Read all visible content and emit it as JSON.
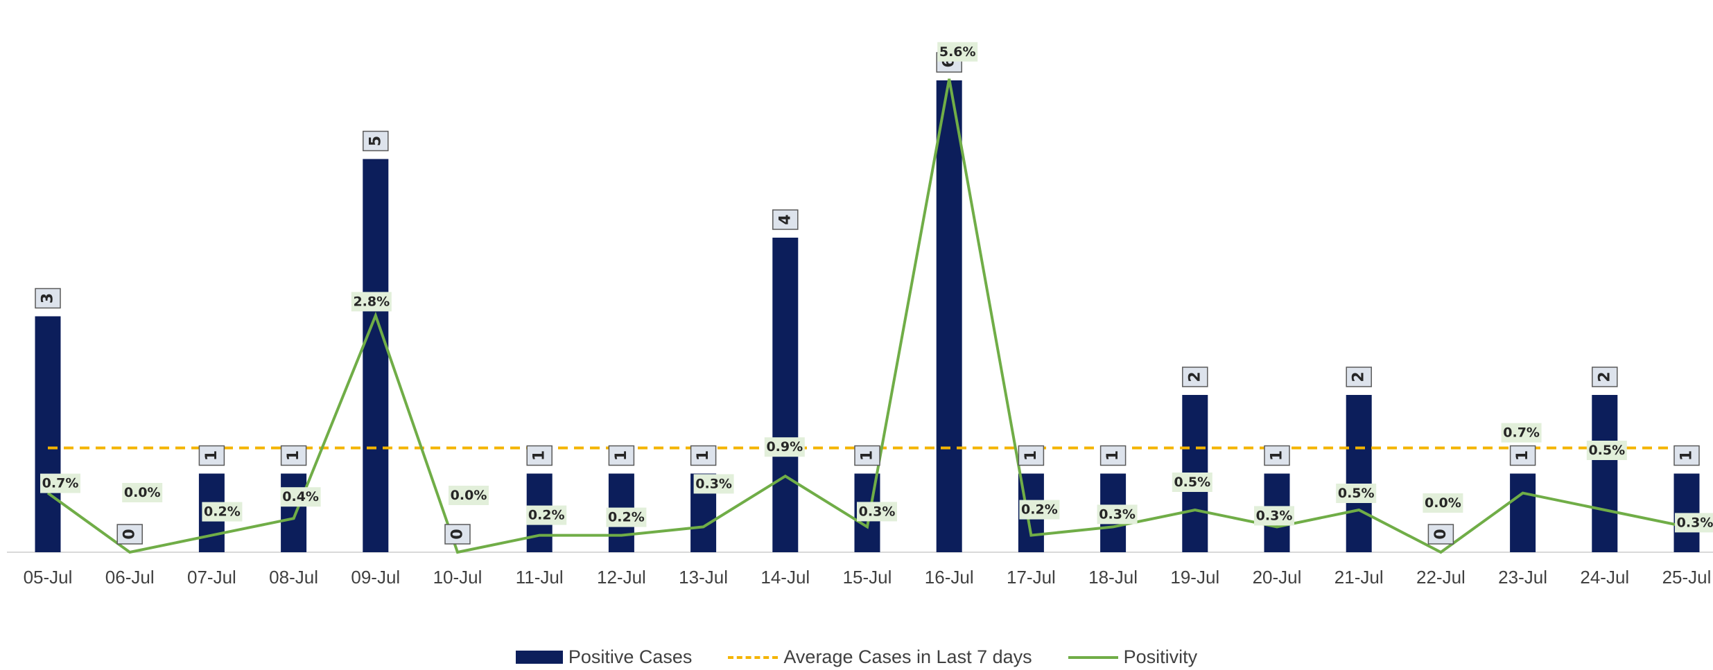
{
  "chart_data": {
    "type": "bar",
    "categories": [
      "05-Jul",
      "06-Jul",
      "07-Jul",
      "08-Jul",
      "09-Jul",
      "10-Jul",
      "11-Jul",
      "12-Jul",
      "13-Jul",
      "14-Jul",
      "15-Jul",
      "16-Jul",
      "17-Jul",
      "18-Jul",
      "19-Jul",
      "20-Jul",
      "21-Jul",
      "22-Jul",
      "23-Jul",
      "24-Jul",
      "25-Jul"
    ],
    "series": [
      {
        "name": "Positive Cases",
        "kind": "bar",
        "color": "#0c1e5b",
        "values": [
          3,
          0,
          1,
          1,
          5,
          0,
          1,
          1,
          1,
          4,
          1,
          6,
          1,
          1,
          2,
          1,
          2,
          0,
          1,
          2,
          1
        ],
        "labels": [
          "3",
          "0",
          "1",
          "1",
          "5",
          "0",
          "1",
          "1",
          "1",
          "4",
          "1",
          "6",
          "1",
          "1",
          "2",
          "1",
          "2",
          "0",
          "1",
          "2",
          "1"
        ]
      },
      {
        "name": "Average Cases in Last 7 days",
        "kind": "line",
        "style": "dashed",
        "color": "#f4b400",
        "value": 1.3
      },
      {
        "name": "Positivity",
        "kind": "line",
        "color": "#70ad47",
        "values": [
          0.7,
          0.0,
          0.2,
          0.4,
          2.8,
          0.0,
          0.2,
          0.2,
          0.3,
          0.9,
          0.3,
          5.6,
          0.2,
          0.3,
          0.5,
          0.3,
          0.5,
          0.0,
          0.7,
          0.5,
          0.3
        ],
        "labels": [
          "0.7%",
          "0.0%",
          "0.2%",
          "0.4%",
          "2.8%",
          "0.0%",
          "0.2%",
          "0.2%",
          "0.3%",
          "0.9%",
          "0.3%",
          "5.6%",
          "0.2%",
          "0.3%",
          "0.5%",
          "0.3%",
          "0.5%",
          "0.0%",
          "0.7%",
          "0.5%",
          "0.3%"
        ]
      }
    ],
    "title": "",
    "xlabel": "",
    "ylabel": "",
    "y_axis_shown": false,
    "grid": false,
    "legend_position": "bottom"
  },
  "legend": {
    "bar_label": "Positive Cases",
    "avg_label": "Average Cases in Last 7 days",
    "pos_label": "Positivity"
  },
  "colors": {
    "bar": "#0c1e5b",
    "avg_line": "#f4b400",
    "positivity": "#70ad47",
    "bar_label_bg": "#dde3ec",
    "pct_label_bg": "#e2efda"
  }
}
